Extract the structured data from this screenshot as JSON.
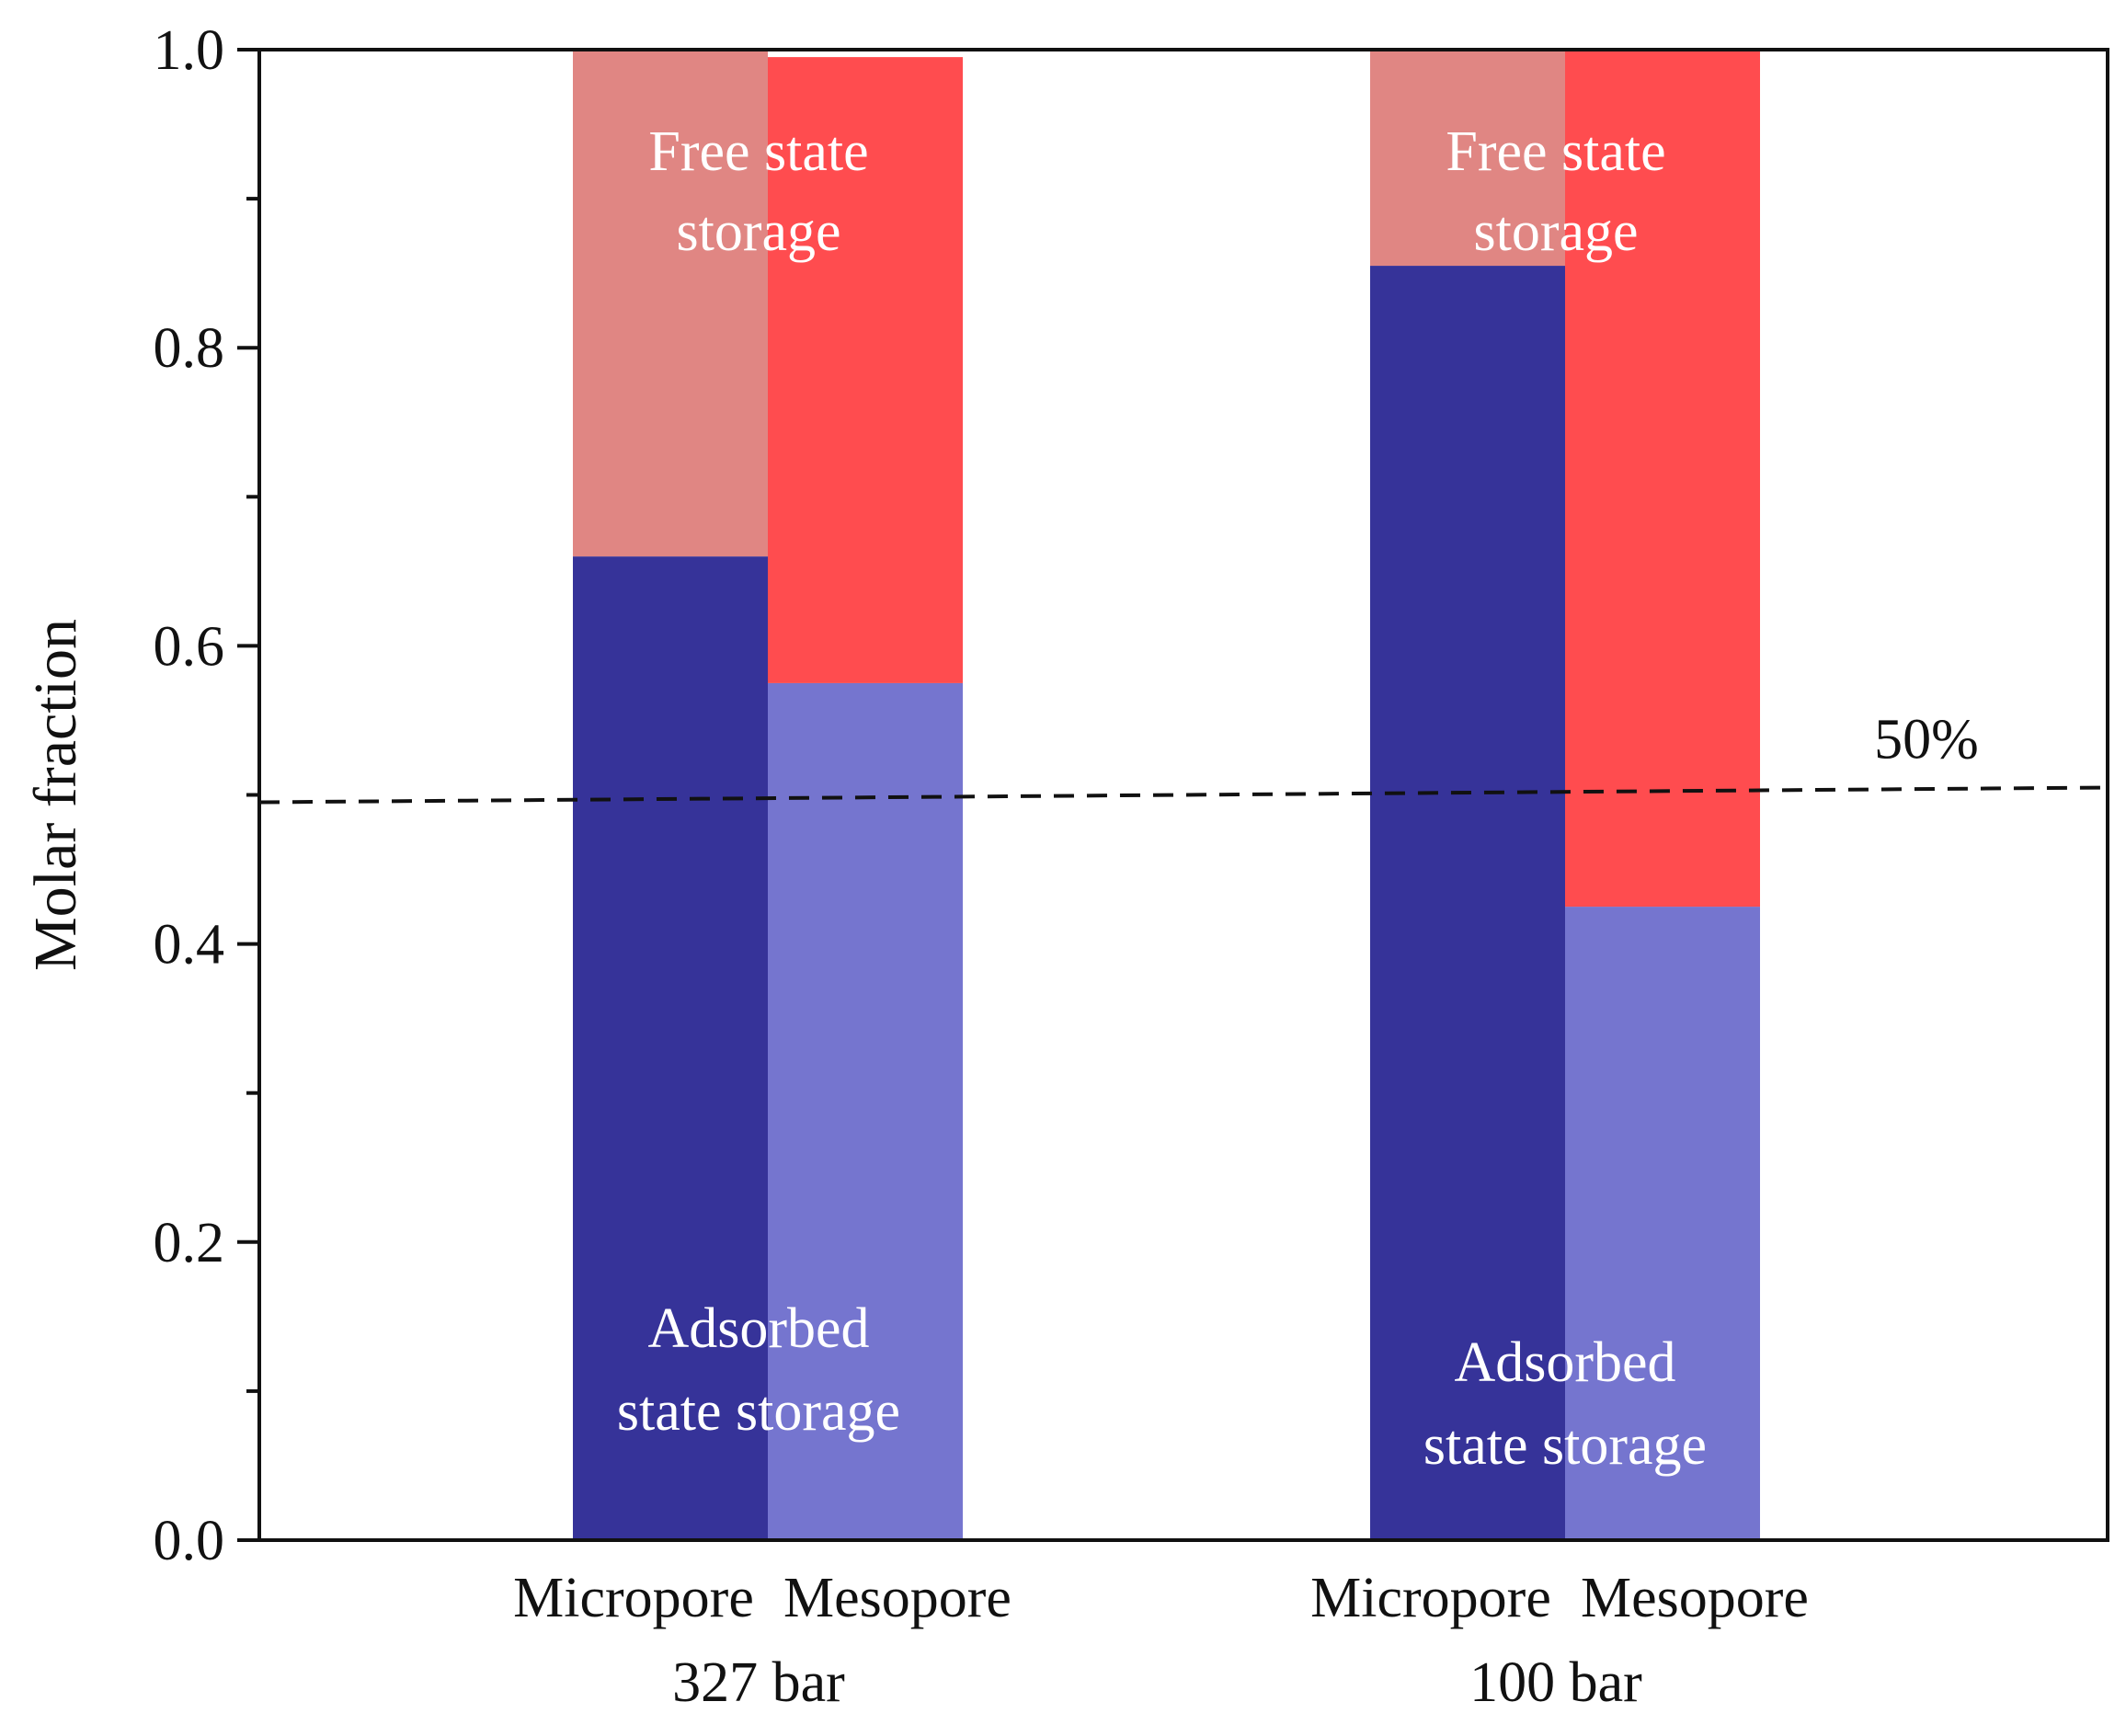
{
  "chart_data": {
    "type": "bar",
    "stacked": true,
    "ylabel": "Molar fraction",
    "ylim": [
      0,
      1.0
    ],
    "yticks": [
      "0.0",
      "0.2",
      "0.4",
      "0.6",
      "0.8",
      "1.0"
    ],
    "groups": [
      {
        "name": "327 bar",
        "bars": [
          {
            "category": "Micropore",
            "adsorbed": 0.66,
            "free": 0.34
          },
          {
            "category": "Mesopore",
            "adsorbed": 0.575,
            "free": 0.42
          }
        ]
      },
      {
        "name": "100 bar",
        "bars": [
          {
            "category": "Micropore",
            "adsorbed": 0.855,
            "free": 0.145
          },
          {
            "category": "Mesopore",
            "adsorbed": 0.425,
            "free": 0.575
          }
        ]
      }
    ],
    "annotations": {
      "free_line1": "Free state",
      "free_line2": "storage",
      "adsorbed_line1": "Adsorbed",
      "adsorbed_line2": "state storage",
      "threshold_label": "50%"
    },
    "threshold": 0.5,
    "colors": {
      "micropore_adsorbed": "#363399",
      "micropore_free": "#e08683",
      "mesopore_adsorbed": "#7575cf",
      "mesopore_free": "#ff4c4f",
      "threshold_line": "#111111"
    }
  }
}
